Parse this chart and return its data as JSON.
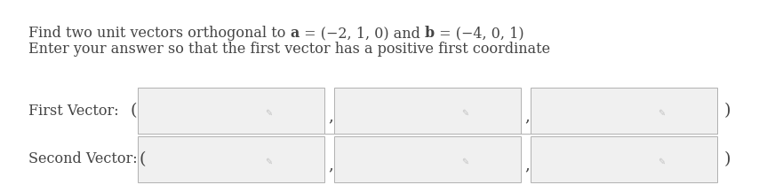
{
  "line1_plain": "Find two unit vectors orthogonal to ",
  "line1_bold_a": "a",
  "line1_math_a": " = (−2, 1, 0) and ",
  "line1_bold_b": "b",
  "line1_math_b": " = (−4, 0, 1)",
  "line2": "Enter your answer so that the first vector has a positive first coordinate",
  "label1": "First Vector: ",
  "label2": "Second Vector: ",
  "bg_color": "#ffffff",
  "box_fill": "#f0f0f0",
  "box_edge": "#b0b0b0",
  "text_color": "#444444",
  "icon_color": "#c0c0c0",
  "font_size": 11.5,
  "label_font_size": 11.5,
  "paren_font_size": 13
}
